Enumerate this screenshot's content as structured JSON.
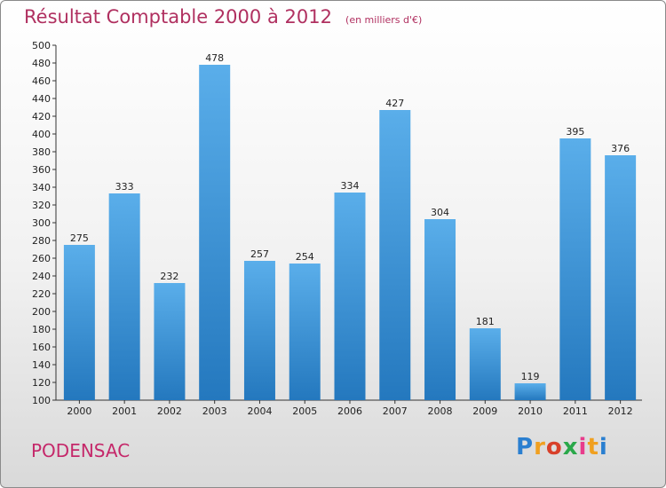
{
  "title": "Résultat Comptable 2000 à 2012",
  "subtitle": "(en milliers d'€)",
  "commune": "PODENSAC",
  "logo": {
    "letters": [
      "P",
      "r",
      "o",
      "x",
      "i",
      "t",
      "i"
    ],
    "colors": [
      "#2a7fd0",
      "#f0a020",
      "#d8402a",
      "#2aa84a",
      "#e83c8c",
      "#f0a020",
      "#2a7fd0"
    ]
  },
  "chart_data": {
    "type": "bar",
    "title": "Résultat Comptable 2000 à 2012",
    "subtitle": "(en milliers d'€)",
    "categories": [
      "2000",
      "2001",
      "2002",
      "2003",
      "2004",
      "2005",
      "2006",
      "2007",
      "2008",
      "2009",
      "2010",
      "2011",
      "2012"
    ],
    "values": [
      275,
      333,
      232,
      478,
      257,
      254,
      334,
      427,
      304,
      181,
      119,
      395,
      376
    ],
    "ylim": [
      100,
      500
    ],
    "ytick_step": 20,
    "grid": false,
    "bar_color": "#3d8fd8"
  }
}
